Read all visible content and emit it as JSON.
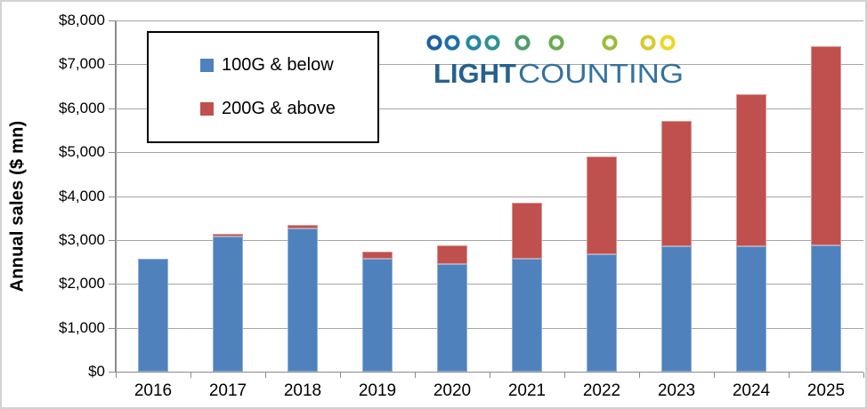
{
  "chart_data": {
    "type": "bar",
    "stacked": true,
    "title": "",
    "categories": [
      "2016",
      "2017",
      "2018",
      "2019",
      "2020",
      "2021",
      "2022",
      "2023",
      "2024",
      "2025"
    ],
    "series": [
      {
        "name": "100G & below",
        "color": "#4f81bd",
        "edge_color": "#8fb2d8",
        "values": [
          2580,
          3080,
          3260,
          2580,
          2450,
          2575,
          2680,
          2850,
          2850,
          2880
        ]
      },
      {
        "name": "200G & above",
        "color": "#c0504d",
        "edge_color": "#d99795",
        "values": [
          0,
          60,
          80,
          150,
          420,
          1275,
          2230,
          2870,
          3460,
          4530
        ]
      }
    ],
    "xlabel": "",
    "ylabel": "Annual sales ($ mn)",
    "ylim": [
      0,
      8000
    ],
    "ytick_step": 1000,
    "ytick_labels": [
      "$0",
      "$1,000",
      "$2,000",
      "$3,000",
      "$4,000",
      "$5,000",
      "$6,000",
      "$7,000",
      "$8,000"
    ],
    "grid": true,
    "gridline_color": "#a6a6a6",
    "axis_color": "#8a8a8a",
    "legend_position": "top-left"
  },
  "legend": {
    "items": [
      {
        "label": "100G & below",
        "color": "#4f81bd"
      },
      {
        "label": "200G & above",
        "color": "#c0504d"
      }
    ]
  },
  "logo": {
    "text_bold": "LIGHT",
    "text_regular": "COUNTING",
    "bold_color": "#27608f",
    "regular_color": "#34739e",
    "dot_colors": [
      "#1d5fa6",
      "#1e6fad",
      "#2286a4",
      "#2d9390",
      "#4d9e6c",
      "#6cab51",
      "#9cbc3b",
      "#d6cb2e",
      "#ecd723"
    ]
  }
}
